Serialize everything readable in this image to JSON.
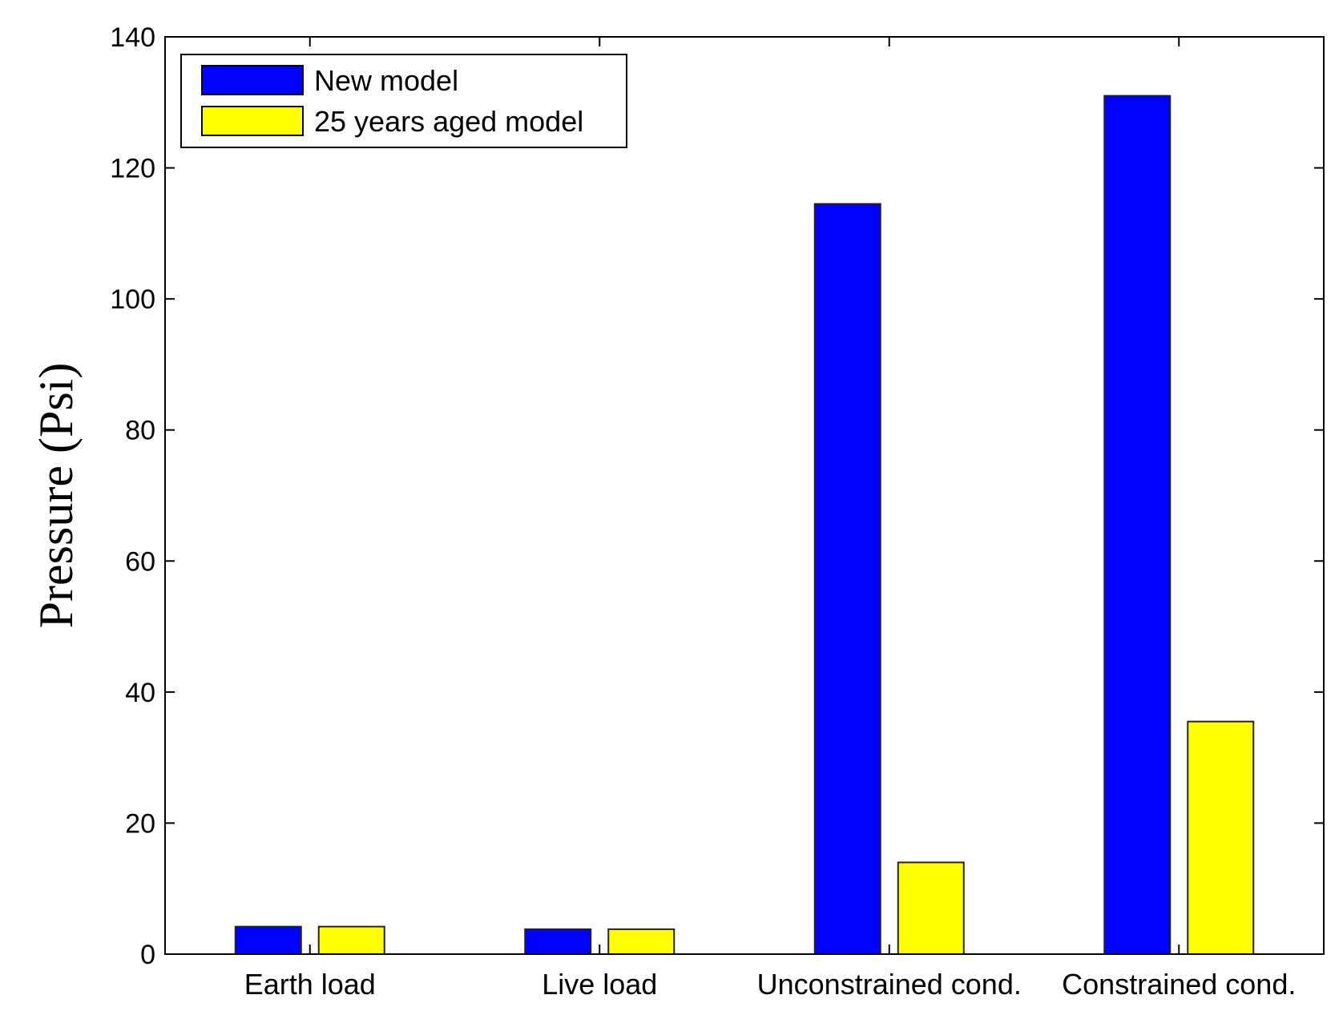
{
  "chart_data": {
    "type": "bar",
    "title": "",
    "xlabel": "",
    "ylabel": "Pressure (Psi)",
    "ylim": [
      0,
      140
    ],
    "yticks": [
      0,
      20,
      40,
      60,
      80,
      100,
      120,
      140
    ],
    "grid": false,
    "legend_position": "top-left",
    "categories": [
      "Earth load",
      "Live load",
      "Unconstrained cond.",
      "Constrained cond."
    ],
    "series": [
      {
        "name": "New model",
        "color": "#0000FF",
        "values": [
          4.2,
          3.8,
          114.5,
          131.0
        ]
      },
      {
        "name": "25 years aged model",
        "color": "#FFFF00",
        "values": [
          4.2,
          3.8,
          14.0,
          35.5
        ]
      }
    ]
  }
}
